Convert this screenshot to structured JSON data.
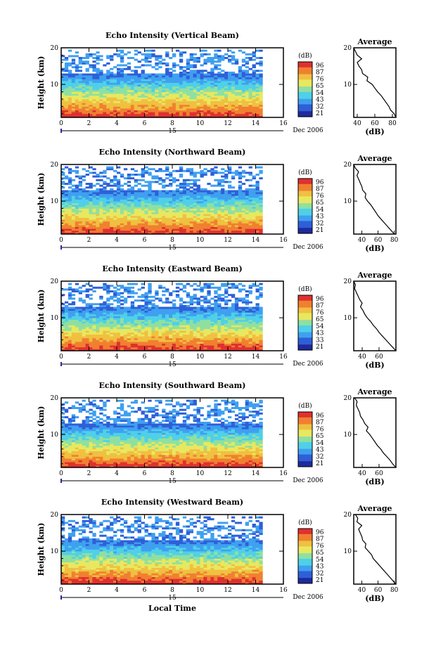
{
  "chart_data": [
    {
      "type": "heatmap",
      "title": "Echo Intensity (Vertical Beam)",
      "ylabel": "Height (km)",
      "xlim": [
        0,
        16
      ],
      "ylim": [
        1,
        20
      ],
      "xticks": [
        "0",
        "2",
        "4",
        "6",
        "8",
        "10",
        "12",
        "14",
        "16"
      ],
      "yticks": [
        "10",
        "20"
      ],
      "date_marker": "15",
      "date_label": "Dec 2006",
      "colorbar": {
        "unit": "(dB)",
        "ticks": [
          "96",
          "87",
          "76",
          "65",
          "54",
          "43",
          "32",
          "21"
        ]
      },
      "profile": {
        "title": "Average",
        "xlabel": "(dB)",
        "xticks": [
          "40",
          "60",
          "80"
        ],
        "xlim": [
          36,
          84
        ],
        "yticks": [
          "10",
          "20"
        ],
        "h": [
          1,
          2,
          3,
          4,
          5,
          6,
          7,
          8,
          9,
          10,
          11,
          12,
          13,
          14,
          15,
          16,
          17,
          18,
          19,
          20
        ],
        "db": [
          84,
          82,
          78,
          76,
          73,
          70,
          67,
          63,
          60,
          57,
          51,
          52,
          46,
          45,
          42,
          40,
          45,
          40,
          38,
          36
        ]
      }
    },
    {
      "type": "heatmap",
      "title": "Echo Intensity (Northward Beam)",
      "ylabel": "Height (km)",
      "xlim": [
        0,
        16
      ],
      "ylim": [
        1,
        20
      ],
      "xticks": [
        "0",
        "2",
        "4",
        "6",
        "8",
        "10",
        "12",
        "14",
        "16"
      ],
      "yticks": [
        "10",
        "20"
      ],
      "date_marker": "15",
      "date_label": "Dec 2006",
      "colorbar": {
        "unit": "(dB)",
        "ticks": [
          "96",
          "87",
          "76",
          "65",
          "54",
          "43",
          "32",
          "21"
        ]
      },
      "profile": {
        "title": "Average",
        "xlabel": "(dB)",
        "xticks": [
          "40",
          "60",
          "80"
        ],
        "xlim": [
          30,
          82
        ],
        "yticks": [
          "10",
          "20"
        ],
        "h": [
          1,
          2,
          3,
          4,
          5,
          6,
          7,
          8,
          9,
          10,
          11,
          12,
          13,
          14,
          15,
          16,
          17,
          18,
          19,
          20
        ],
        "db": [
          80,
          76,
          72,
          68,
          64,
          60,
          57,
          54,
          51,
          47,
          44,
          45,
          41,
          40,
          38,
          36,
          34,
          36,
          32,
          30
        ]
      }
    },
    {
      "type": "heatmap",
      "title": "Echo Intensity (Eastward Beam)",
      "ylabel": "Height (km)",
      "xlim": [
        0,
        16
      ],
      "ylim": [
        1,
        20
      ],
      "xticks": [
        "0",
        "2",
        "4",
        "6",
        "8",
        "10",
        "12",
        "14",
        "16"
      ],
      "yticks": [
        "10",
        "20"
      ],
      "date_marker": "15",
      "date_label": "Dec 2006",
      "colorbar": {
        "unit": "(dB)",
        "ticks": [
          "96",
          "87",
          "76",
          "65",
          "54",
          "43",
          "33",
          "21"
        ]
      },
      "profile": {
        "title": "Average",
        "xlabel": "(dB)",
        "xticks": [
          "40",
          "60"
        ],
        "xlim": [
          30,
          80
        ],
        "yticks": [
          "10",
          "20"
        ],
        "h": [
          1,
          2,
          3,
          4,
          5,
          6,
          7,
          8,
          9,
          10,
          11,
          12,
          13,
          14,
          15,
          16,
          17,
          18,
          19,
          20
        ],
        "db": [
          80,
          76,
          72,
          68,
          64,
          60,
          57,
          53,
          50,
          46,
          43,
          41,
          38,
          40,
          37,
          35,
          33,
          31,
          32,
          30
        ]
      }
    },
    {
      "type": "heatmap",
      "title": "Echo Intensity (Southward Beam)",
      "ylabel": "Height (km)",
      "xlim": [
        0,
        16
      ],
      "ylim": [
        1,
        20
      ],
      "xticks": [
        "0",
        "2",
        "4",
        "6",
        "8",
        "10",
        "12",
        "14",
        "16"
      ],
      "yticks": [
        "10",
        "20"
      ],
      "date_marker": "15",
      "date_label": "Dec 2006",
      "colorbar": {
        "unit": "(dB)",
        "ticks": [
          "96",
          "87",
          "76",
          "65",
          "54",
          "43",
          "32",
          "21"
        ]
      },
      "profile": {
        "title": "Average",
        "xlabel": "(dB)",
        "xticks": [
          "40",
          "60"
        ],
        "xlim": [
          30,
          80
        ],
        "yticks": [
          "10",
          "20"
        ],
        "h": [
          1,
          2,
          3,
          4,
          5,
          6,
          7,
          8,
          9,
          10,
          11,
          12,
          13,
          14,
          15,
          16,
          17,
          18,
          19,
          20
        ],
        "db": [
          80,
          76,
          73,
          69,
          65,
          62,
          58,
          55,
          52,
          49,
          45,
          47,
          43,
          41,
          38,
          37,
          35,
          33,
          34,
          31
        ]
      }
    },
    {
      "type": "heatmap",
      "title": "Echo Intensity (Westward Beam)",
      "ylabel": "Height (km)",
      "xlabel": "Local Time",
      "xlim": [
        0,
        16
      ],
      "ylim": [
        1,
        20
      ],
      "xticks": [
        "0",
        "2",
        "4",
        "6",
        "8",
        "10",
        "12",
        "14",
        "16"
      ],
      "yticks": [
        "10",
        "20"
      ],
      "date_marker": "15",
      "date_label": "Dec 2006",
      "colorbar": {
        "unit": "(dB)",
        "ticks": [
          "96",
          "87",
          "76",
          "65",
          "54",
          "43",
          "32",
          "21"
        ]
      },
      "profile": {
        "title": "Average",
        "xlabel": "(dB)",
        "xticks": [
          "40",
          "60",
          "80"
        ],
        "xlim": [
          30,
          82
        ],
        "yticks": [
          "10",
          "20"
        ],
        "h": [
          1,
          2,
          3,
          4,
          5,
          6,
          7,
          8,
          9,
          10,
          11,
          12,
          13,
          14,
          15,
          16,
          17,
          18,
          19,
          20
        ],
        "db": [
          82,
          78,
          74,
          70,
          66,
          62,
          58,
          54,
          52,
          48,
          44,
          45,
          41,
          40,
          38,
          36,
          40,
          34,
          35,
          32
        ]
      }
    }
  ],
  "colors": {
    "scale": [
      "#1f2a9c",
      "#2f5fd8",
      "#3fa0f0",
      "#4fd0e8",
      "#8fe0a0",
      "#e8e860",
      "#f0c040",
      "#f08030",
      "#e03030"
    ]
  }
}
